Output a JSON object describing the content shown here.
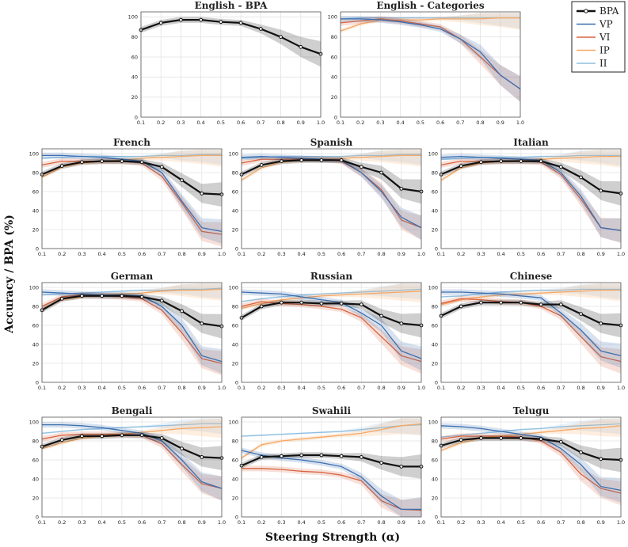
{
  "figure": {
    "xlabel": "Steering Strength (α)",
    "ylabel": "Accuracy / BPA (%)",
    "legend": {
      "position": "top-right"
    }
  },
  "colors": {
    "BPA": "#111111",
    "VP": "#3b6fb0",
    "VI": "#d9633f",
    "IP": "#f5a866",
    "II": "#8fbfe0"
  },
  "chart_data": {
    "type": "line",
    "x": [
      0.1,
      0.2,
      0.3,
      0.4,
      0.5,
      0.6,
      0.7,
      0.8,
      0.9,
      1.0
    ],
    "x_ticks": [
      "0.1",
      "0.2",
      "0.3",
      "0.4",
      "0.5",
      "0.6",
      "0.7",
      "0.8",
      "0.9",
      "1.0"
    ],
    "y_ticks": [
      "0",
      "20",
      "40",
      "60",
      "80",
      "100"
    ],
    "xlim": [
      0.1,
      1.0
    ],
    "ylim": [
      0,
      105
    ],
    "legend": [
      "BPA",
      "VP",
      "VI",
      "IP",
      "II"
    ],
    "panels": [
      {
        "title": "English - BPA",
        "series": {
          "BPA": [
            87,
            94,
            97,
            97,
            95,
            94,
            88,
            80,
            70,
            63
          ]
        }
      },
      {
        "title": "English - Categories",
        "series": {
          "VP": [
            98,
            98,
            97,
            95,
            92,
            88,
            78,
            65,
            42,
            28
          ],
          "VI": [
            94,
            96,
            98,
            96,
            93,
            90,
            78,
            60,
            42,
            28
          ],
          "IP": [
            86,
            93,
            97,
            97,
            97,
            98,
            98,
            98,
            99,
            99
          ],
          "II": [
            98,
            99,
            99,
            99,
            99,
            99,
            99,
            99,
            99,
            99
          ]
        }
      },
      {
        "title": "French",
        "series": {
          "BPA": [
            78,
            87,
            91,
            92,
            92,
            91,
            86,
            72,
            58,
            57
          ],
          "VP": [
            98,
            98,
            97,
            96,
            94,
            92,
            80,
            50,
            22,
            18
          ],
          "VI": [
            88,
            92,
            92,
            92,
            92,
            90,
            76,
            48,
            18,
            15
          ],
          "IP": [
            75,
            86,
            90,
            92,
            93,
            95,
            96,
            97,
            98,
            98
          ],
          "II": [
            95,
            96,
            97,
            97,
            97,
            97,
            98,
            98,
            99,
            99
          ]
        }
      },
      {
        "title": "Spanish",
        "series": {
          "BPA": [
            78,
            88,
            92,
            93,
            93,
            93,
            86,
            80,
            63,
            60
          ],
          "VP": [
            96,
            97,
            96,
            95,
            94,
            93,
            80,
            60,
            33,
            22
          ],
          "VI": [
            90,
            94,
            94,
            94,
            94,
            92,
            80,
            62,
            30,
            22
          ],
          "IP": [
            72,
            85,
            91,
            93,
            94,
            95,
            96,
            97,
            98,
            98
          ],
          "II": [
            95,
            96,
            97,
            97,
            97,
            97,
            98,
            98,
            99,
            99
          ]
        }
      },
      {
        "title": "Italian",
        "series": {
          "BPA": [
            78,
            87,
            91,
            92,
            92,
            92,
            86,
            75,
            61,
            58
          ],
          "VP": [
            96,
            97,
            96,
            95,
            94,
            93,
            80,
            55,
            22,
            19
          ],
          "VI": [
            88,
            92,
            92,
            92,
            92,
            91,
            78,
            52,
            22,
            19
          ],
          "IP": [
            72,
            85,
            90,
            92,
            93,
            94,
            95,
            96,
            97,
            97
          ],
          "II": [
            94,
            95,
            96,
            96,
            96,
            97,
            97,
            98,
            98,
            98
          ]
        }
      },
      {
        "title": "German",
        "series": {
          "BPA": [
            76,
            88,
            91,
            91,
            91,
            90,
            86,
            75,
            62,
            59
          ],
          "VP": [
            95,
            94,
            93,
            92,
            92,
            91,
            80,
            60,
            28,
            22
          ],
          "VI": [
            80,
            90,
            92,
            91,
            90,
            88,
            76,
            52,
            25,
            20
          ],
          "IP": [
            77,
            87,
            90,
            92,
            93,
            94,
            96,
            97,
            97,
            98
          ],
          "II": [
            92,
            93,
            94,
            95,
            96,
            97,
            97,
            98,
            98,
            99
          ]
        }
      },
      {
        "title": "Russian",
        "series": {
          "BPA": [
            68,
            80,
            84,
            84,
            83,
            83,
            82,
            70,
            62,
            60
          ],
          "VP": [
            95,
            94,
            93,
            90,
            87,
            84,
            73,
            60,
            33,
            25
          ],
          "VI": [
            80,
            85,
            83,
            82,
            80,
            77,
            68,
            48,
            28,
            22
          ],
          "IP": [
            78,
            83,
            87,
            89,
            91,
            92,
            93,
            94,
            95,
            96
          ],
          "II": [
            85,
            88,
            90,
            92,
            93,
            94,
            95,
            96,
            97,
            98
          ]
        }
      },
      {
        "title": "Chinese",
        "series": {
          "BPA": [
            70,
            80,
            84,
            84,
            84,
            82,
            82,
            72,
            62,
            60
          ],
          "VP": [
            95,
            95,
            94,
            93,
            91,
            89,
            73,
            55,
            33,
            28
          ],
          "VI": [
            83,
            88,
            87,
            85,
            84,
            80,
            70,
            48,
            27,
            22
          ],
          "IP": [
            82,
            87,
            90,
            92,
            93,
            94,
            95,
            96,
            97,
            97
          ],
          "II": [
            90,
            91,
            93,
            95,
            96,
            97,
            97,
            98,
            98,
            98
          ]
        }
      },
      {
        "title": "Bengali",
        "series": {
          "BPA": [
            74,
            81,
            85,
            85,
            86,
            86,
            83,
            72,
            63,
            62
          ],
          "VP": [
            97,
            97,
            96,
            94,
            91,
            88,
            80,
            60,
            37,
            30
          ],
          "VI": [
            82,
            86,
            87,
            87,
            87,
            86,
            77,
            55,
            35,
            30
          ],
          "IP": [
            72,
            78,
            83,
            85,
            87,
            89,
            91,
            93,
            94,
            95
          ],
          "II": [
            88,
            90,
            92,
            93,
            94,
            95,
            96,
            97,
            98,
            98
          ]
        }
      },
      {
        "title": "Swahili",
        "series": {
          "BPA": [
            54,
            63,
            64,
            65,
            65,
            64,
            63,
            57,
            53,
            53
          ],
          "VP": [
            70,
            65,
            62,
            60,
            57,
            53,
            42,
            22,
            8,
            8
          ],
          "VI": [
            51,
            51,
            50,
            48,
            47,
            44,
            38,
            17,
            8,
            7
          ],
          "IP": [
            62,
            76,
            80,
            82,
            84,
            86,
            88,
            92,
            96,
            98
          ],
          "II": [
            85,
            86,
            87,
            88,
            89,
            90,
            92,
            94,
            96,
            97
          ]
        }
      },
      {
        "title": "Telugu",
        "series": {
          "BPA": [
            75,
            81,
            83,
            83,
            83,
            82,
            79,
            68,
            61,
            60
          ],
          "VP": [
            96,
            95,
            93,
            90,
            87,
            84,
            72,
            55,
            32,
            28
          ],
          "VI": [
            82,
            85,
            85,
            85,
            84,
            80,
            68,
            45,
            30,
            25
          ],
          "IP": [
            70,
            78,
            83,
            85,
            87,
            89,
            91,
            93,
            94,
            96
          ],
          "II": [
            84,
            86,
            88,
            90,
            92,
            93,
            95,
            96,
            97,
            98
          ]
        }
      }
    ]
  }
}
